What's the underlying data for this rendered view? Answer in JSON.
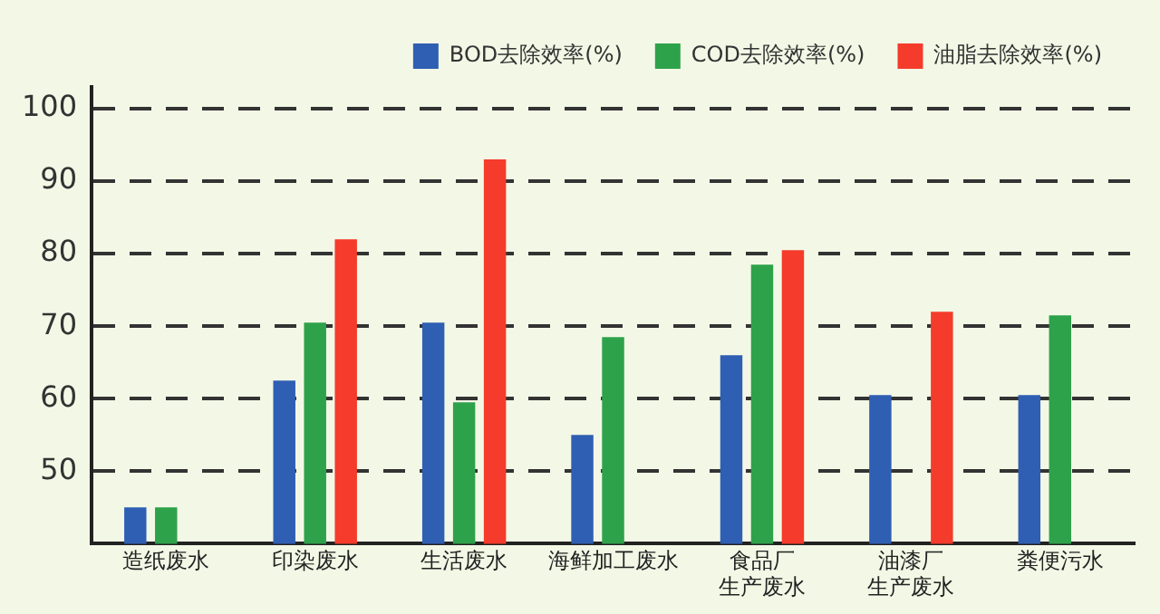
{
  "chart_data": {
    "type": "bar",
    "categories": [
      "造纸废水",
      "印染废水",
      "生活废水",
      "海鲜加工废水",
      "食品厂生产废水",
      "油漆厂生产废水",
      "粪便污水"
    ],
    "series": [
      {
        "name": "BOD去除效率(%)",
        "color": "#2f5fb3",
        "values": [
          45,
          62.5,
          70.5,
          55,
          66,
          60.5,
          60.5
        ]
      },
      {
        "name": "COD去除效率(%)",
        "color": "#2ea24a",
        "values": [
          45,
          70.5,
          59.5,
          68.5,
          78.5,
          null,
          71.5
        ]
      },
      {
        "name": "油脂去除效率(%)",
        "color": "#f53b2b",
        "values": [
          null,
          82,
          93,
          null,
          80.5,
          72,
          null
        ]
      }
    ],
    "ylim": [
      40,
      103
    ],
    "yticks": [
      50,
      60,
      70,
      80,
      90,
      100
    ],
    "grid": "y",
    "line_style": "dashed",
    "legend": "top right"
  }
}
